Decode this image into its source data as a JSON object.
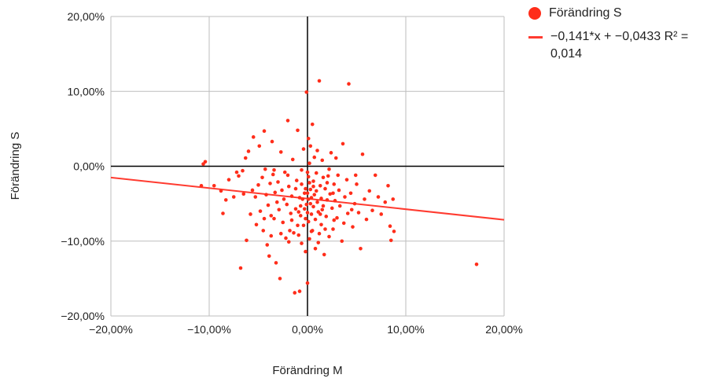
{
  "chart_data": {
    "type": "scatter",
    "title": "",
    "xlabel": "Förändring M",
    "ylabel": "Förändring S",
    "xlim": [
      -0.2,
      0.2
    ],
    "ylim": [
      -0.2,
      0.2
    ],
    "x_ticks": [
      -0.2,
      -0.1,
      0.0,
      0.1,
      0.2
    ],
    "y_ticks": [
      -0.2,
      -0.1,
      0.0,
      0.1,
      0.2
    ],
    "x_tick_labels": [
      "−20,00%",
      "−10,00%",
      "0,00%",
      "10,00%",
      "20,00%"
    ],
    "y_tick_labels": [
      "−20,00%",
      "−10,00%",
      "0,00%",
      "10,00%",
      "20,00%"
    ],
    "grid": true,
    "legend_position": "top-right",
    "series": [
      {
        "name": "Förändring S",
        "color": "#ff2d1a",
        "points": [
          [
            -0.104,
            0.006
          ],
          [
            -0.106,
            0.003
          ],
          [
            -0.108,
            -0.026
          ],
          [
            -0.095,
            -0.026
          ],
          [
            -0.088,
            -0.033
          ],
          [
            -0.086,
            -0.063
          ],
          [
            -0.083,
            -0.045
          ],
          [
            -0.08,
            -0.018
          ],
          [
            -0.075,
            -0.041
          ],
          [
            -0.072,
            -0.008
          ],
          [
            -0.07,
            -0.013
          ],
          [
            -0.068,
            -0.136
          ],
          [
            -0.066,
            -0.006
          ],
          [
            -0.065,
            -0.037
          ],
          [
            -0.063,
            0.011
          ],
          [
            -0.062,
            -0.099
          ],
          [
            -0.06,
            0.02
          ],
          [
            -0.058,
            -0.064
          ],
          [
            -0.056,
            -0.032
          ],
          [
            -0.055,
            0.039
          ],
          [
            -0.053,
            -0.041
          ],
          [
            -0.052,
            -0.078
          ],
          [
            -0.05,
            -0.025
          ],
          [
            -0.049,
            0.027
          ],
          [
            -0.048,
            -0.06
          ],
          [
            -0.046,
            -0.015
          ],
          [
            -0.045,
            -0.086
          ],
          [
            -0.044,
            0.047
          ],
          [
            -0.043,
            -0.004
          ],
          [
            -0.042,
            -0.038
          ],
          [
            -0.041,
            -0.105
          ],
          [
            -0.04,
            -0.052
          ],
          [
            -0.039,
            -0.12
          ],
          [
            -0.038,
            -0.023
          ],
          [
            -0.037,
            -0.066
          ],
          [
            -0.036,
            0.033
          ],
          [
            -0.035,
            -0.011
          ],
          [
            -0.034,
            -0.07
          ],
          [
            -0.033,
            -0.035
          ],
          [
            -0.032,
            -0.129
          ],
          [
            -0.031,
            -0.048
          ],
          [
            -0.03,
            -0.021
          ],
          [
            -0.029,
            -0.058
          ],
          [
            -0.028,
            -0.15
          ],
          [
            -0.027,
            0.019
          ],
          [
            -0.026,
            -0.032
          ],
          [
            -0.025,
            -0.075
          ],
          [
            -0.024,
            -0.044
          ],
          [
            -0.023,
            -0.008
          ],
          [
            -0.022,
            -0.096
          ],
          [
            -0.021,
            -0.051
          ],
          [
            -0.02,
            0.061
          ],
          [
            -0.019,
            -0.027
          ],
          [
            -0.018,
            -0.086
          ],
          [
            -0.017,
            -0.063
          ],
          [
            -0.016,
            -0.04
          ],
          [
            -0.015,
            0.009
          ],
          [
            -0.014,
            -0.089
          ],
          [
            -0.013,
            -0.169
          ],
          [
            -0.012,
            -0.057
          ],
          [
            -0.011,
            -0.019
          ],
          [
            -0.01,
            -0.079
          ],
          [
            -0.01,
            0.048
          ],
          [
            -0.009,
            -0.092
          ],
          [
            -0.008,
            -0.042
          ],
          [
            -0.008,
            -0.167
          ],
          [
            -0.007,
            -0.066
          ],
          [
            -0.006,
            -0.024
          ],
          [
            -0.006,
            -0.103
          ],
          [
            -0.005,
            -0.044
          ],
          [
            -0.004,
            0.023
          ],
          [
            -0.004,
            -0.079
          ],
          [
            -0.003,
            -0.036
          ],
          [
            -0.003,
            -0.057
          ],
          [
            -0.002,
            -0.114
          ],
          [
            -0.002,
            -0.03
          ],
          [
            -0.001,
            -0.051
          ],
          [
            -0.001,
            0.099
          ],
          [
            0.0,
            -0.062
          ],
          [
            0.0,
            -0.036
          ],
          [
            0.0,
            -0.008
          ],
          [
            0.0,
            -0.156
          ],
          [
            0.001,
            -0.044
          ],
          [
            0.001,
            0.037
          ],
          [
            0.001,
            -0.074
          ],
          [
            0.002,
            -0.022
          ],
          [
            0.002,
            -0.097
          ],
          [
            0.003,
            -0.05
          ],
          [
            0.003,
            0.027
          ],
          [
            0.003,
            -0.031
          ],
          [
            0.004,
            -0.064
          ],
          [
            0.004,
            -0.042
          ],
          [
            0.005,
            0.056
          ],
          [
            0.005,
            -0.086
          ],
          [
            0.006,
            -0.02
          ],
          [
            0.006,
            -0.054
          ],
          [
            0.007,
            -0.038
          ],
          [
            0.007,
            0.012
          ],
          [
            0.008,
            -0.071
          ],
          [
            0.008,
            -0.11
          ],
          [
            0.009,
            -0.033
          ],
          [
            0.01,
            -0.048
          ],
          [
            0.01,
            0.021
          ],
          [
            0.011,
            -0.061
          ],
          [
            0.012,
            -0.09
          ],
          [
            0.012,
            0.114
          ],
          [
            0.013,
            -0.026
          ],
          [
            0.014,
            -0.043
          ],
          [
            0.014,
            -0.078
          ],
          [
            0.015,
            0.008
          ],
          [
            0.016,
            -0.053
          ],
          [
            0.017,
            -0.118
          ],
          [
            0.018,
            -0.03
          ],
          [
            0.019,
            -0.067
          ],
          [
            0.02,
            -0.045
          ],
          [
            0.021,
            -0.013
          ],
          [
            0.022,
            -0.094
          ],
          [
            0.023,
            -0.037
          ],
          [
            0.024,
            0.018
          ],
          [
            0.025,
            -0.056
          ],
          [
            0.026,
            -0.084
          ],
          [
            0.027,
            -0.024
          ],
          [
            0.028,
            -0.046
          ],
          [
            0.029,
            0.011
          ],
          [
            0.03,
            -0.069
          ],
          [
            0.032,
            -0.032
          ],
          [
            0.033,
            -0.053
          ],
          [
            0.035,
            -0.1
          ],
          [
            0.036,
            0.03
          ],
          [
            0.038,
            -0.041
          ],
          [
            0.04,
            -0.018
          ],
          [
            0.041,
            -0.063
          ],
          [
            0.042,
            0.11
          ],
          [
            0.044,
            -0.036
          ],
          [
            0.046,
            -0.081
          ],
          [
            0.048,
            -0.05
          ],
          [
            0.05,
            -0.024
          ],
          [
            0.052,
            -0.062
          ],
          [
            0.054,
            -0.11
          ],
          [
            0.056,
            0.016
          ],
          [
            0.058,
            -0.044
          ],
          [
            0.06,
            -0.071
          ],
          [
            0.063,
            -0.033
          ],
          [
            0.066,
            -0.059
          ],
          [
            0.069,
            -0.012
          ],
          [
            0.072,
            -0.041
          ],
          [
            0.075,
            -0.064
          ],
          [
            0.079,
            -0.048
          ],
          [
            0.082,
            -0.026
          ],
          [
            0.084,
            -0.08
          ],
          [
            0.085,
            -0.099
          ],
          [
            0.087,
            -0.044
          ],
          [
            0.088,
            -0.087
          ],
          [
            0.172,
            -0.131
          ],
          [
            -0.034,
            -0.005
          ],
          [
            -0.02,
            -0.012
          ],
          [
            -0.012,
            -0.03
          ],
          [
            -0.006,
            -0.005
          ],
          [
            0.002,
            0.004
          ],
          [
            0.009,
            -0.009
          ],
          [
            0.016,
            -0.015
          ],
          [
            0.022,
            -0.004
          ],
          [
            0.027,
            -0.072
          ],
          [
            0.031,
            -0.012
          ],
          [
            -0.016,
            -0.072
          ],
          [
            -0.009,
            -0.061
          ],
          [
            0.004,
            -0.087
          ],
          [
            0.011,
            -0.102
          ],
          [
            0.018,
            -0.084
          ],
          [
            -0.027,
            -0.09
          ],
          [
            -0.019,
            -0.101
          ],
          [
            0.001,
            -0.014
          ],
          [
            0.006,
            -0.027
          ],
          [
            0.013,
            -0.064
          ],
          [
            -0.002,
            -0.07
          ],
          [
            -0.007,
            -0.053
          ],
          [
            0.015,
            -0.058
          ],
          [
            0.02,
            -0.022
          ],
          [
            0.026,
            -0.036
          ],
          [
            -0.044,
            -0.07
          ],
          [
            -0.037,
            -0.093
          ],
          [
            0.037,
            -0.076
          ],
          [
            0.045,
            -0.058
          ],
          [
            0.049,
            -0.012
          ]
        ]
      }
    ],
    "trendline": {
      "name": "−0,141*x + −0,0433 R² = 0,014",
      "color": "#ff3b30",
      "slope": -0.141,
      "intercept": -0.0433
    },
    "axis_color": "#000000",
    "grid_color": "#bdbdbd"
  }
}
